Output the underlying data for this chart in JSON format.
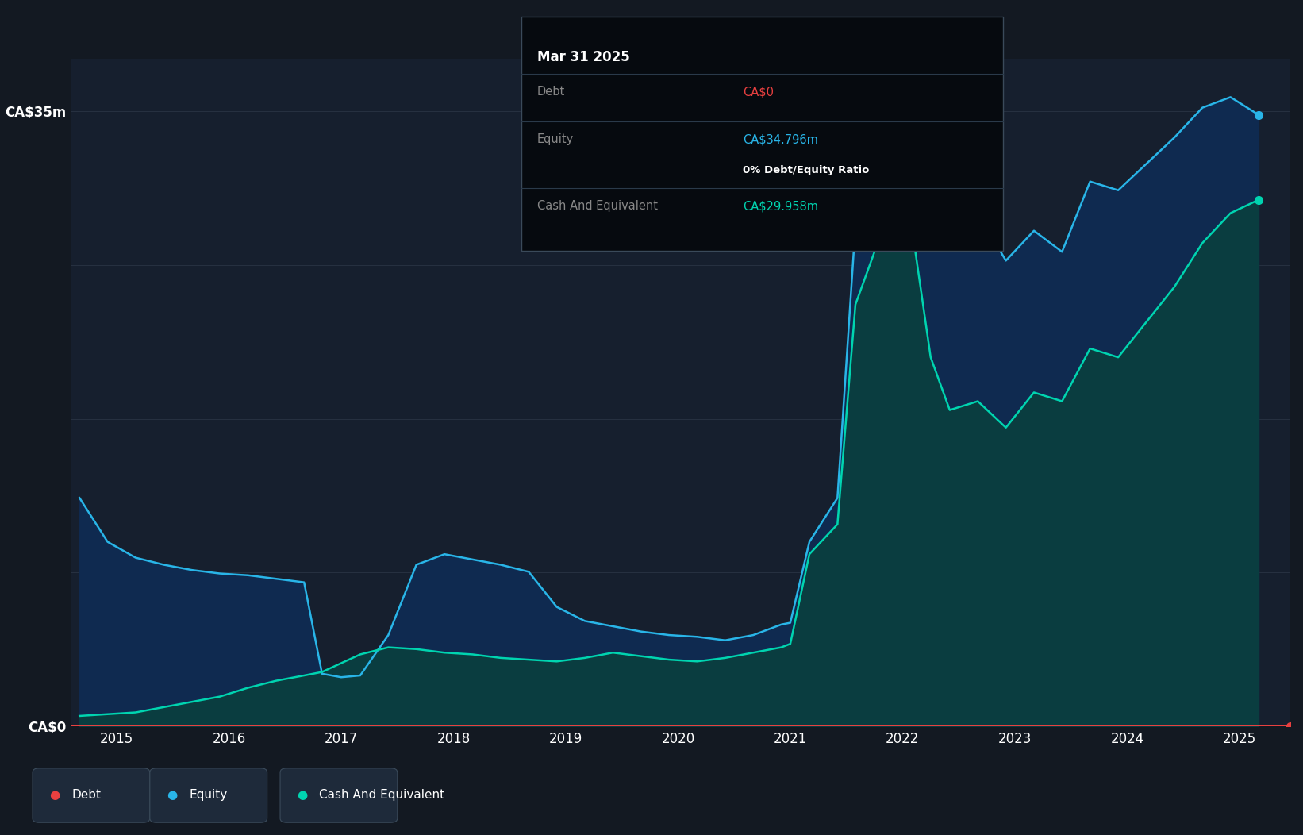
{
  "bg_color": "#131922",
  "plot_bg_color": "#161f2e",
  "grid_color": "#263040",
  "ylim": [
    0,
    38000000
  ],
  "xlim": [
    2014.6,
    2025.45
  ],
  "yticks": [
    0,
    35000000
  ],
  "ytick_labels": [
    "CA$0",
    "CA$35m"
  ],
  "xtick_vals": [
    2015,
    2016,
    2017,
    2018,
    2019,
    2020,
    2021,
    2022,
    2023,
    2024,
    2025
  ],
  "xtick_labels": [
    "2015",
    "2016",
    "2017",
    "2018",
    "2019",
    "2020",
    "2021",
    "2022",
    "2023",
    "2024",
    "2025"
  ],
  "equity_color": "#29b5e8",
  "equity_fill": "#0f2a50",
  "cash_color": "#00d4b0",
  "cash_fill": "#0a3d40",
  "debt_color": "#e84040",
  "legend_bg": "#1e2a3a",
  "tooltip_bg": "#060a0f",
  "tooltip_border": "#3a4a5a",
  "equity_x": [
    2014.67,
    2014.92,
    2015.17,
    2015.42,
    2015.67,
    2015.92,
    2016.17,
    2016.42,
    2016.67,
    2016.83,
    2017.0,
    2017.17,
    2017.42,
    2017.67,
    2017.92,
    2018.17,
    2018.42,
    2018.67,
    2018.92,
    2019.17,
    2019.42,
    2019.67,
    2019.92,
    2020.17,
    2020.42,
    2020.67,
    2020.92,
    2021.0,
    2021.17,
    2021.42,
    2021.58,
    2021.75,
    2021.92,
    2022.08,
    2022.25,
    2022.42,
    2022.67,
    2022.92,
    2023.17,
    2023.42,
    2023.67,
    2023.92,
    2024.17,
    2024.42,
    2024.67,
    2024.92,
    2025.17
  ],
  "equity_y": [
    13000000,
    10500000,
    9600000,
    9200000,
    8900000,
    8700000,
    8600000,
    8400000,
    8200000,
    3000000,
    2800000,
    2900000,
    5200000,
    9200000,
    9800000,
    9500000,
    9200000,
    8800000,
    6800000,
    6000000,
    5700000,
    5400000,
    5200000,
    5100000,
    4900000,
    5200000,
    5800000,
    5900000,
    10500000,
    13000000,
    28500000,
    32000000,
    36500000,
    37500000,
    34000000,
    30500000,
    29200000,
    26500000,
    28200000,
    27000000,
    31000000,
    30500000,
    32000000,
    33500000,
    35200000,
    35800000,
    34796000
  ],
  "cash_x": [
    2014.67,
    2014.92,
    2015.17,
    2015.42,
    2015.67,
    2015.92,
    2016.17,
    2016.42,
    2016.67,
    2016.83,
    2017.0,
    2017.17,
    2017.42,
    2017.67,
    2017.92,
    2018.17,
    2018.42,
    2018.67,
    2018.92,
    2019.17,
    2019.42,
    2019.67,
    2019.92,
    2020.17,
    2020.42,
    2020.67,
    2020.92,
    2021.0,
    2021.17,
    2021.42,
    2021.58,
    2021.75,
    2021.92,
    2022.08,
    2022.25,
    2022.42,
    2022.67,
    2022.92,
    2023.17,
    2023.42,
    2023.67,
    2023.92,
    2024.17,
    2024.42,
    2024.67,
    2024.92,
    2025.17
  ],
  "cash_y": [
    600000,
    700000,
    800000,
    1100000,
    1400000,
    1700000,
    2200000,
    2600000,
    2900000,
    3100000,
    3600000,
    4100000,
    4500000,
    4400000,
    4200000,
    4100000,
    3900000,
    3800000,
    3700000,
    3900000,
    4200000,
    4000000,
    3800000,
    3700000,
    3900000,
    4200000,
    4500000,
    4700000,
    9800000,
    11500000,
    24000000,
    27000000,
    28000000,
    28500000,
    21000000,
    18000000,
    18500000,
    17000000,
    19000000,
    18500000,
    21500000,
    21000000,
    23000000,
    25000000,
    27500000,
    29200000,
    29958000
  ],
  "tooltip_title": "Mar 31 2025",
  "tooltip_debt_label": "Debt",
  "tooltip_debt_value": "CA$0",
  "tooltip_equity_label": "Equity",
  "tooltip_equity_value": "CA$34.796m",
  "tooltip_ratio": "0% Debt/Equity Ratio",
  "tooltip_cash_label": "Cash And Equivalent",
  "tooltip_cash_value": "CA$29.958m"
}
